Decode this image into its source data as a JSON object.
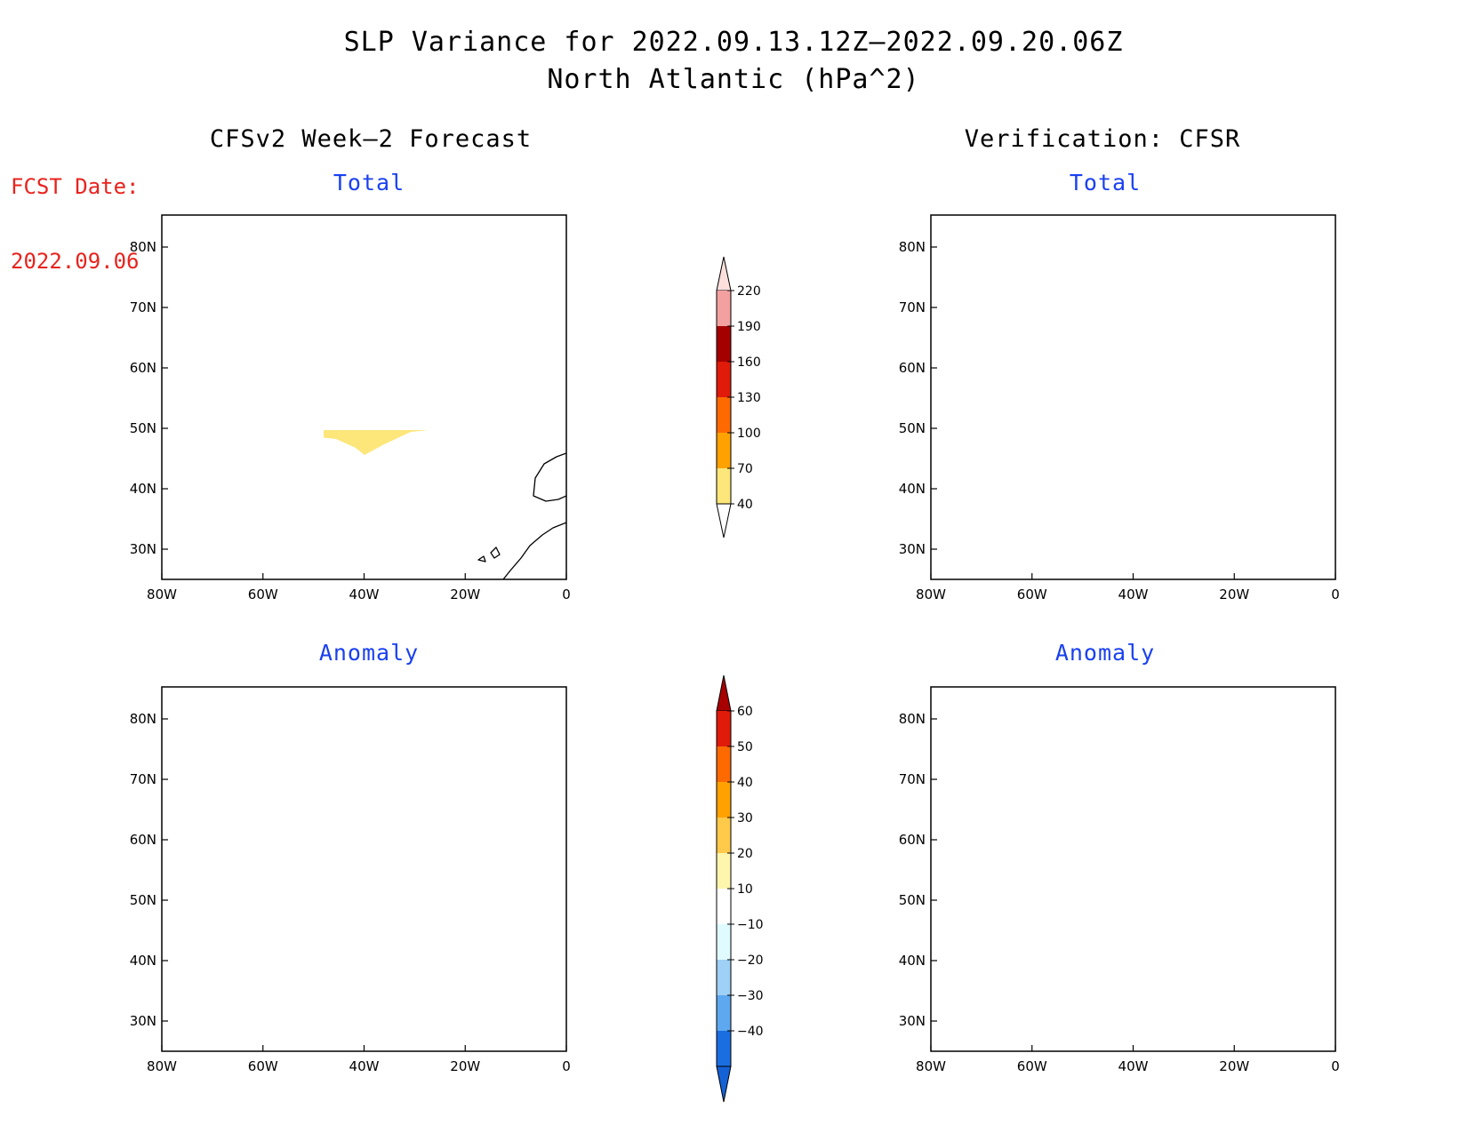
{
  "figure": {
    "title_line1": "SLP Variance for 2022.09.13.12Z—2022.09.20.06Z",
    "title_line2": "North Atlantic (hPa^2)",
    "fcst_label": "FCST Date:",
    "fcst_date": "2022.09.06",
    "left_column_title": "CFSv2 Week—2 Forecast",
    "right_column_title": "Verification: CFSR"
  },
  "panels": {
    "forecast_total": {
      "subtitle": "Total"
    },
    "verify_total": {
      "subtitle": "Total"
    },
    "forecast_anomaly": {
      "subtitle": "Anomaly"
    },
    "verify_anomaly": {
      "subtitle": "Anomaly"
    }
  },
  "axes": {
    "lat_labels": [
      "80N",
      "70N",
      "60N",
      "50N",
      "40N",
      "30N"
    ],
    "lon_labels": [
      "80W",
      "60W",
      "40W",
      "20W",
      "0"
    ]
  },
  "colorbars": {
    "total": {
      "levels": [
        "220",
        "190",
        "160",
        "130",
        "100",
        "70",
        "40"
      ],
      "colors": [
        "#fde0dc",
        "#f3a0a0",
        "#a40000",
        "#e01b0a",
        "#ff6a00",
        "#ffa200",
        "#fde67a"
      ]
    },
    "anomaly": {
      "levels": [
        "60",
        "50",
        "40",
        "30",
        "20",
        "10",
        "−10",
        "−20",
        "−30",
        "−40"
      ],
      "colors": [
        "#a80000",
        "#e01b0a",
        "#ff6a00",
        "#ffa200",
        "#ffc94a",
        "#fff6ad",
        "#ffffff",
        "#e0fbff",
        "#9fd0f6",
        "#5ea8f0",
        "#1a6ee0",
        "#1562d6"
      ]
    }
  }
}
